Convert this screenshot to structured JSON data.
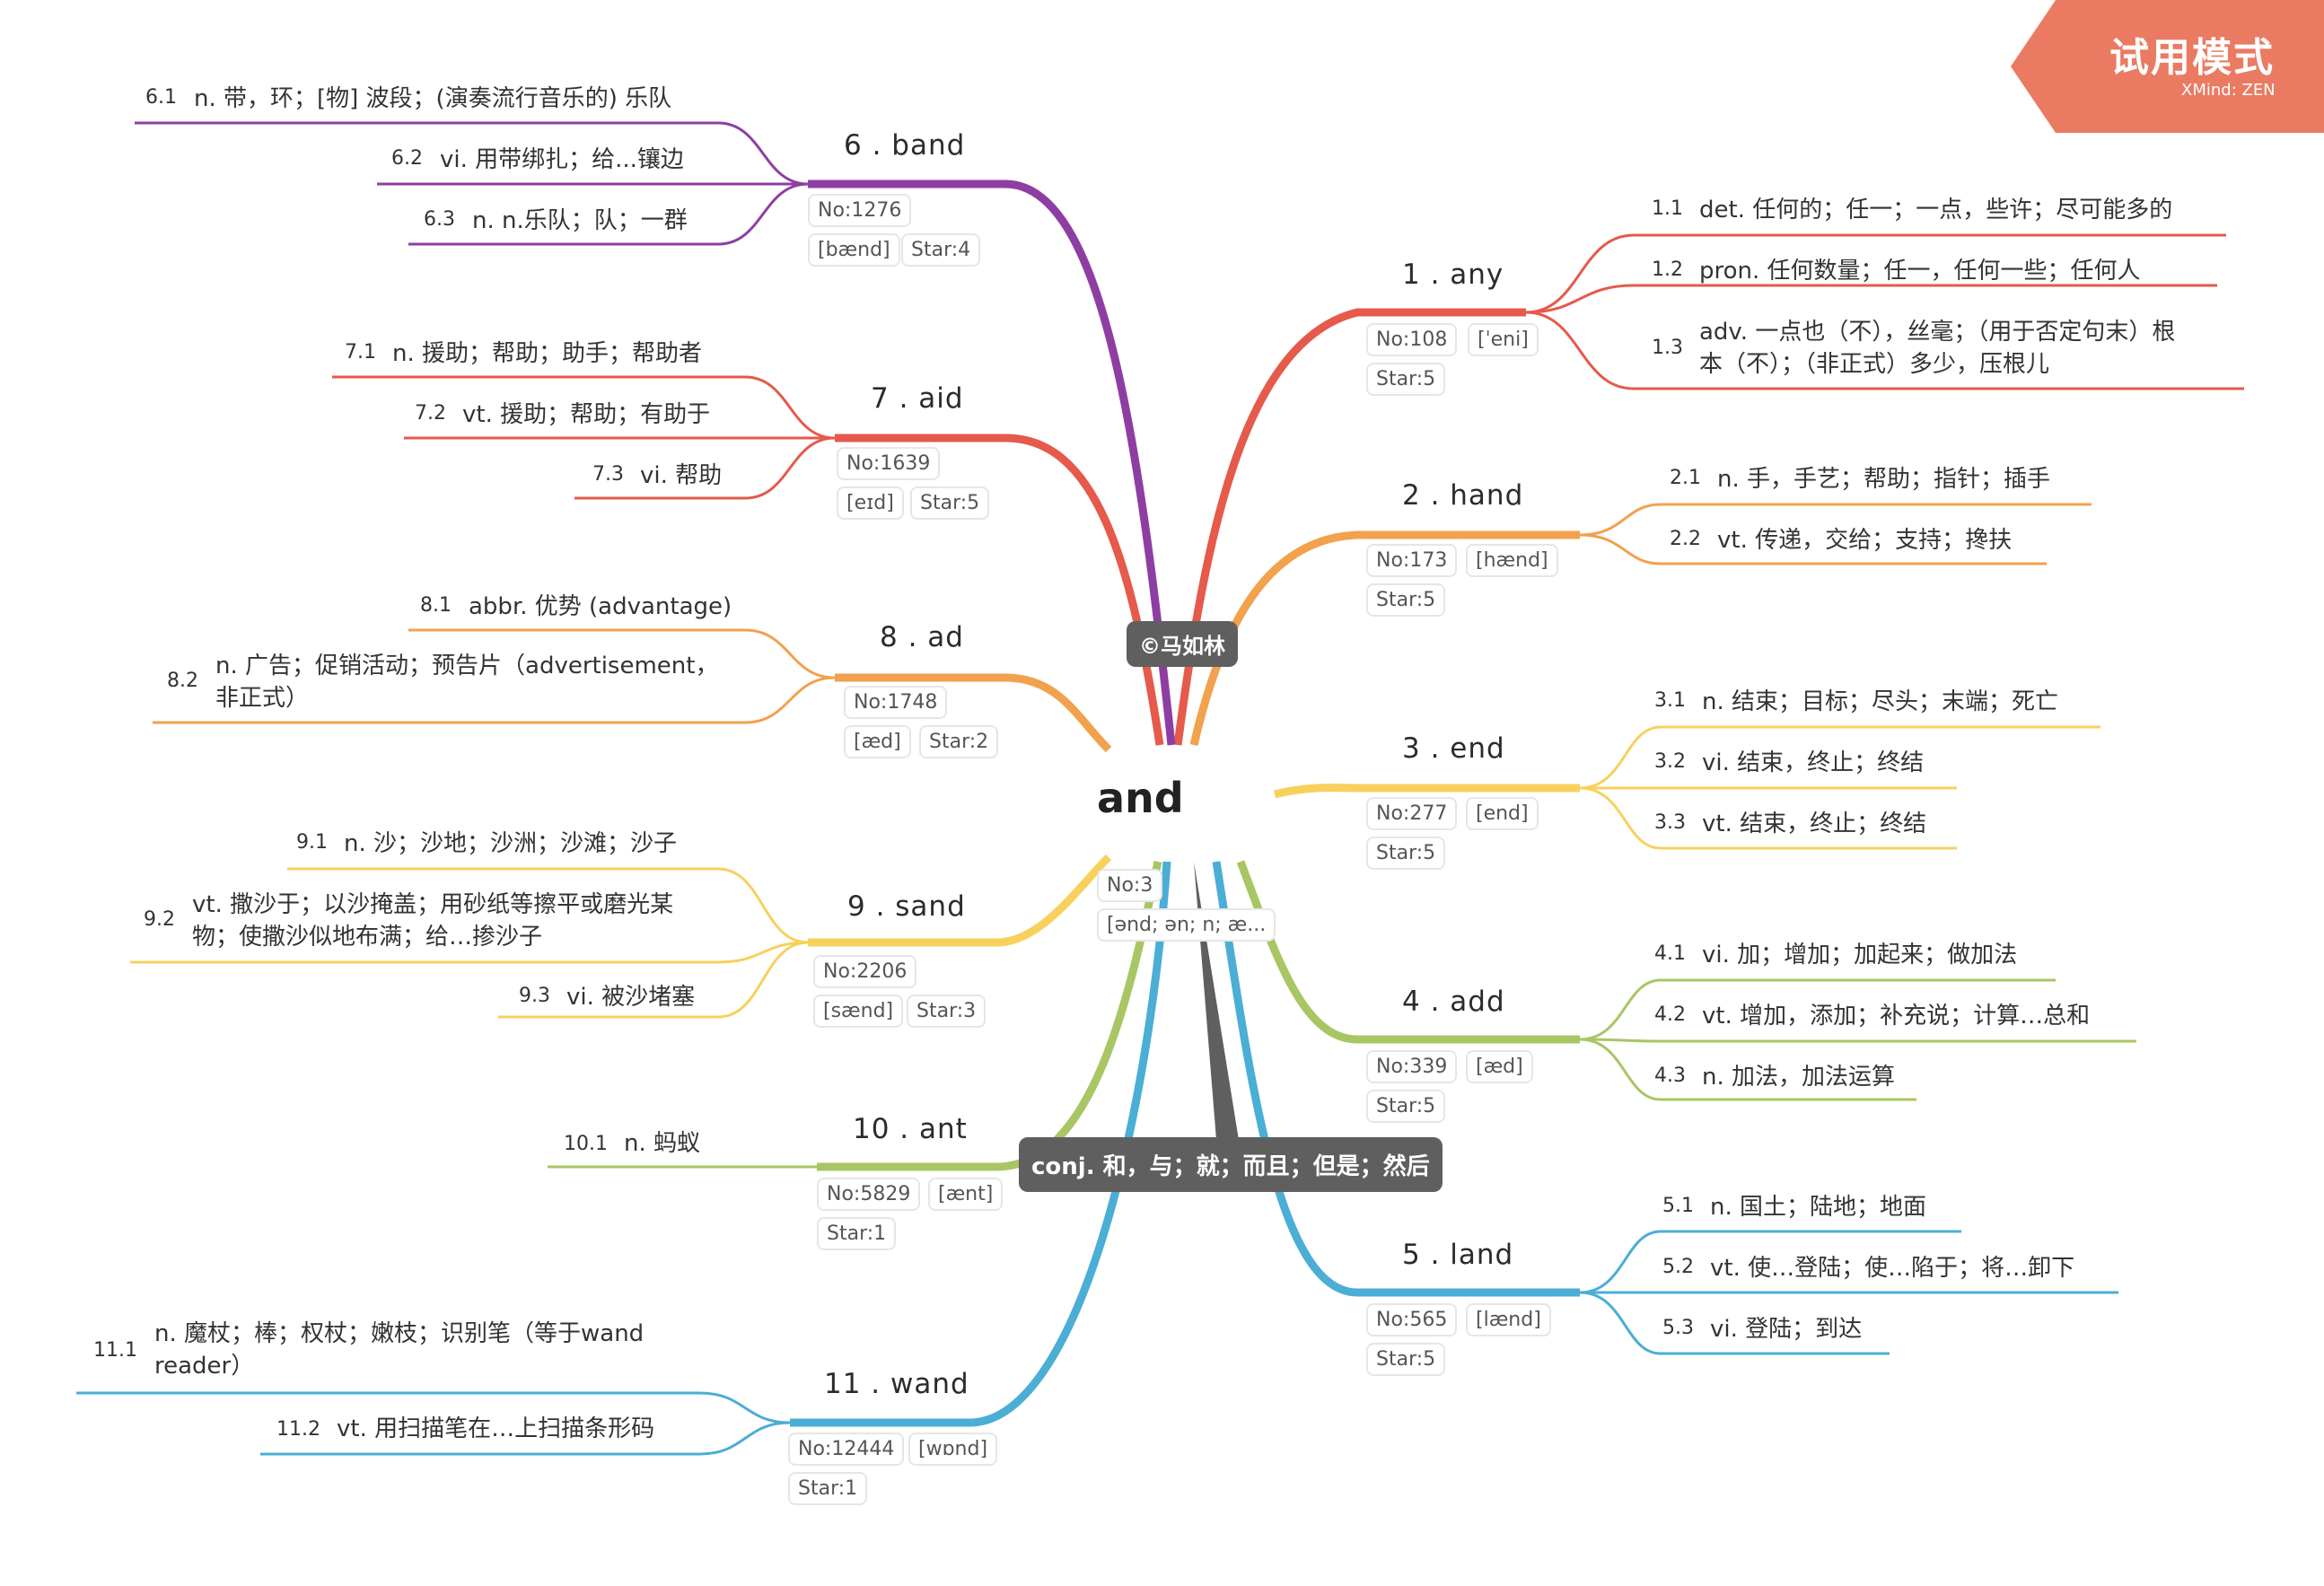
{
  "header": {
    "trial_label": "试用模式",
    "trial_brand": "XMind: ZEN"
  },
  "center": {
    "word": "and",
    "no": "No:3",
    "phonetic": "[ənd; ən; n; æ...",
    "copyright": "©马如林",
    "definition": "conj. 和，与；就；而且；但是；然后"
  },
  "colors": {
    "red": "#e55a4b",
    "orange": "#f2a14d",
    "yellow": "#f7d15c",
    "green": "#a8c664",
    "blue": "#4aaed5",
    "purple": "#8e3ea3",
    "gray": "#5f5f5f",
    "trial": "#ea7b62"
  },
  "branches": [
    {
      "title": "1 .  any",
      "no": "No:108",
      "phonetic": "[ˈeni]",
      "star": "Star:5",
      "defs": [
        {
          "n": "1.1",
          "t": "det. 任何的；任一；一点，些许；尽可能多的"
        },
        {
          "n": "1.2",
          "t": "pron. 任何数量；任一，任何一些；任何人"
        },
        {
          "n": "1.3",
          "t": "adv. 一点也（不），丝毫；（用于否定句末）根",
          "t2": "本（不）；（非正式）多少，压根儿"
        }
      ]
    },
    {
      "title": "2 .  hand",
      "no": "No:173",
      "phonetic": "[hænd]",
      "star": "Star:5",
      "defs": [
        {
          "n": "2.1",
          "t": "n. 手，手艺；帮助；指针；插手"
        },
        {
          "n": "2.2",
          "t": "vt. 传递，交给；支持；搀扶"
        }
      ]
    },
    {
      "title": "3 .  end",
      "no": "No:277",
      "phonetic": "[end]",
      "star": "Star:5",
      "defs": [
        {
          "n": "3.1",
          "t": "n. 结束；目标；尽头；末端；死亡"
        },
        {
          "n": "3.2",
          "t": "vi. 结束，终止；终结"
        },
        {
          "n": "3.3",
          "t": "vt. 结束，终止；终结"
        }
      ]
    },
    {
      "title": "4 .  add",
      "no": "No:339",
      "phonetic": "[æd]",
      "star": "Star:5",
      "defs": [
        {
          "n": "4.1",
          "t": "vi. 加；增加；加起来；做加法"
        },
        {
          "n": "4.2",
          "t": "vt. 增加，添加；补充说；计算…总和"
        },
        {
          "n": "4.3",
          "t": "n. 加法，加法运算"
        }
      ]
    },
    {
      "title": "5 .  land",
      "no": "No:565",
      "phonetic": "[lænd]",
      "star": "Star:5",
      "defs": [
        {
          "n": "5.1",
          "t": "n. 国土；陆地；地面"
        },
        {
          "n": "5.2",
          "t": "vt. 使…登陆；使…陷于；将…卸下"
        },
        {
          "n": "5.3",
          "t": "vi. 登陆；到达"
        }
      ]
    },
    {
      "title": "6 .  band",
      "no": "No:1276",
      "phonetic": "[bænd]",
      "star": "Star:4",
      "defs": [
        {
          "n": "6.1",
          "t": "n. 带，环；[物] 波段；(演奏流行音乐的) 乐队"
        },
        {
          "n": "6.2",
          "t": "vi. 用带绑扎；给...镶边"
        },
        {
          "n": "6.3",
          "t": "n. n.乐队；队；一群"
        }
      ]
    },
    {
      "title": "7 .  aid",
      "no": "No:1639",
      "phonetic": "[eɪd]",
      "star": "Star:5",
      "defs": [
        {
          "n": "7.1",
          "t": "n. 援助；帮助；助手；帮助者"
        },
        {
          "n": "7.2",
          "t": "vt. 援助；帮助；有助于"
        },
        {
          "n": "7.3",
          "t": "vi. 帮助"
        }
      ]
    },
    {
      "title": "8 .  ad",
      "no": "No:1748",
      "phonetic": "[æd]",
      "star": "Star:2",
      "defs": [
        {
          "n": "8.1",
          "t": "abbr. 优势 (advantage)"
        },
        {
          "n": "8.2",
          "t": "n. 广告；促销活动；预告片（advertisement，",
          "t2": "非正式）"
        }
      ]
    },
    {
      "title": "9 .  sand",
      "no": "No:2206",
      "phonetic": "[sænd]",
      "star": "Star:3",
      "defs": [
        {
          "n": "9.1",
          "t": "n. 沙；沙地；沙洲；沙滩；沙子"
        },
        {
          "n": "9.2",
          "t": "vt. 撒沙于；以沙掩盖；用砂纸等擦平或磨光某",
          "t2": "物；使撒沙似地布满；给…掺沙子"
        },
        {
          "n": "9.3",
          "t": "vi. 被沙堵塞"
        }
      ]
    },
    {
      "title": "10 .  ant",
      "no": "No:5829",
      "phonetic": "[ænt]",
      "star": "Star:1",
      "defs": [
        {
          "n": "10.1",
          "t": "n. 蚂蚁"
        }
      ]
    },
    {
      "title": "11 .  wand",
      "no": "No:12444",
      "phonetic": "[wɒnd]",
      "star": "Star:1",
      "defs": [
        {
          "n": "11.1",
          "t": "n. 魔杖；棒；权杖；嫩枝；识别笔（等于wand",
          "t2": "reader）"
        },
        {
          "n": "11.2",
          "t": "vt. 用扫描笔在…上扫描条形码"
        }
      ]
    }
  ]
}
